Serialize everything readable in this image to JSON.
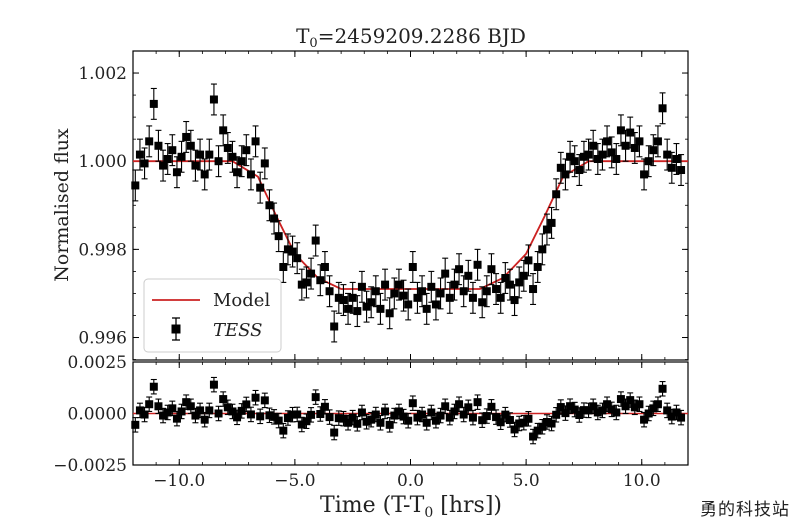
{
  "chart_data": {
    "type": "scatter",
    "title": "T",
    "title_sub": "0",
    "title_suffix": "=2459209.2286 BJD",
    "xlabel": "Time (T-T",
    "xlabel_sub": "0",
    "xlabel_suffix": " [hrs])",
    "top_panel": {
      "ylabel": "Normalised flux",
      "ylim": [
        0.99549,
        1.0025
      ],
      "yticks": [
        "1.002",
        "1.000",
        "0.998",
        "0.996"
      ],
      "ytick_values": [
        1.002,
        1.0,
        0.998,
        0.996
      ],
      "series": [
        {
          "name": "TESS",
          "marker": "square-with-errorbars",
          "color": "#000000",
          "x": [
            -11.9,
            -11.7,
            -11.5,
            -11.3,
            -11.1,
            -10.9,
            -10.7,
            -10.5,
            -10.3,
            -10.1,
            -9.9,
            -9.7,
            -9.5,
            -9.3,
            -9.1,
            -8.9,
            -8.7,
            -8.5,
            -8.3,
            -8.1,
            -7.9,
            -7.7,
            -7.5,
            -7.3,
            -7.1,
            -6.9,
            -6.7,
            -6.5,
            -6.3,
            -6.1,
            -5.9,
            -5.7,
            -5.5,
            -5.3,
            -5.1,
            -4.9,
            -4.7,
            -4.5,
            -4.3,
            -4.1,
            -3.9,
            -3.7,
            -3.5,
            -3.3,
            -3.1,
            -2.9,
            -2.7,
            -2.5,
            -2.3,
            -2.1,
            -1.9,
            -1.7,
            -1.5,
            -1.3,
            -1.1,
            -0.9,
            -0.7,
            -0.5,
            -0.3,
            -0.1,
            0.1,
            0.3,
            0.5,
            0.7,
            0.9,
            1.1,
            1.3,
            1.5,
            1.7,
            1.9,
            2.1,
            2.3,
            2.5,
            2.7,
            2.9,
            3.1,
            3.3,
            3.5,
            3.7,
            3.9,
            4.1,
            4.3,
            4.5,
            4.7,
            4.9,
            5.1,
            5.3,
            5.5,
            5.7,
            5.9,
            6.1,
            6.3,
            6.5,
            6.7,
            6.9,
            7.1,
            7.3,
            7.5,
            7.7,
            7.9,
            8.1,
            8.3,
            8.5,
            8.7,
            8.9,
            9.1,
            9.3,
            9.5,
            9.7,
            9.9,
            10.1,
            10.3,
            10.5,
            10.7,
            10.9,
            11.1,
            11.3,
            11.5,
            11.7
          ],
          "y": [
            0.99945,
            1.00015,
            0.99995,
            1.00045,
            1.0013,
            1.00035,
            0.9999,
            1.00005,
            1.00025,
            0.99975,
            1.0001,
            1.00055,
            1.00035,
            0.9999,
            1.00015,
            0.9997,
            1.00015,
            1.0014,
            1.0,
            1.0007,
            1.0003,
            1.0001,
            0.99975,
            1.0,
            1.00025,
            0.9997,
            1.00045,
            0.9994,
            0.99995,
            0.999,
            0.9987,
            0.9983,
            0.9976,
            0.998,
            0.99795,
            0.9978,
            0.9972,
            0.99725,
            0.99745,
            0.9982,
            0.9973,
            0.9976,
            0.99705,
            0.99625,
            0.9969,
            0.99685,
            0.99665,
            0.9969,
            0.9966,
            0.99715,
            0.9967,
            0.9968,
            0.99705,
            0.99665,
            0.9972,
            0.99655,
            0.997,
            0.9972,
            0.99695,
            0.99675,
            0.9976,
            0.9969,
            0.99705,
            0.99665,
            0.99715,
            0.99675,
            0.997,
            0.99745,
            0.9969,
            0.9972,
            0.99755,
            0.99705,
            0.9974,
            0.9969,
            0.99765,
            0.9968,
            0.99705,
            0.99755,
            0.9971,
            0.9969,
            0.99735,
            0.9972,
            0.99685,
            0.99725,
            0.9974,
            0.99775,
            0.9971,
            0.9976,
            0.998,
            0.99845,
            0.9986,
            0.99925,
            0.99985,
            0.9997,
            1.0001,
            1.0,
            0.9998,
            1.0001,
            1.00015,
            1.00035,
            1.00005,
            1.00015,
            1.00045,
            1.0002,
            1.00005,
            1.0007,
            1.00035,
            1.00065,
            1.0003,
            1.00045,
            0.9997,
            1.0,
            1.00025,
            1.00045,
            1.0012,
            1.00015,
            0.99985,
            1.00005,
            0.9998
          ],
          "yerr": 0.00035
        },
        {
          "name": "Model",
          "marker": "line",
          "color": "#cc2222",
          "x": [
            -12.0,
            -7.7,
            -6.6,
            -5.8,
            -5.0,
            -4.0,
            -3.0,
            3.0,
            4.0,
            5.0,
            5.8,
            6.6,
            7.7,
            12.0
          ],
          "y": [
            1.0,
            1.0,
            0.99965,
            0.99875,
            0.9979,
            0.99735,
            0.9971,
            0.9971,
            0.99735,
            0.9979,
            0.99875,
            0.99965,
            1.0,
            1.0
          ]
        }
      ],
      "legend": {
        "placement": "lower-left",
        "entries": [
          {
            "label": "Model",
            "italic": false,
            "kind": "line",
            "color": "#cc2222"
          },
          {
            "label": "TESS",
            "italic": true,
            "kind": "marker",
            "color": "#000000"
          }
        ]
      }
    },
    "bottom_panel": {
      "ylabel": "",
      "ylim": [
        -0.0025,
        0.0025
      ],
      "yticks": [
        "0.0025",
        "0.0000",
        "−0.0025"
      ],
      "ytick_values": [
        0.0025,
        0.0,
        -0.0025
      ],
      "series": [
        {
          "name": "residuals",
          "marker": "square-with-errorbars",
          "color": "#000000",
          "yerr": 0.00035
        },
        {
          "name": "zero-line",
          "marker": "line",
          "color": "#cc2222",
          "x": [
            -12.0,
            12.0
          ],
          "y": [
            0.0,
            0.0
          ]
        }
      ]
    },
    "xlim": [
      -12.0,
      12.0
    ],
    "xticks": [
      "−10.0",
      "−5.0",
      "0.0",
      "5.0",
      "10.0"
    ],
    "xtick_values": [
      -10.0,
      -5.0,
      0.0,
      5.0,
      10.0
    ],
    "grid": false
  },
  "watermark": "勇的科技站"
}
